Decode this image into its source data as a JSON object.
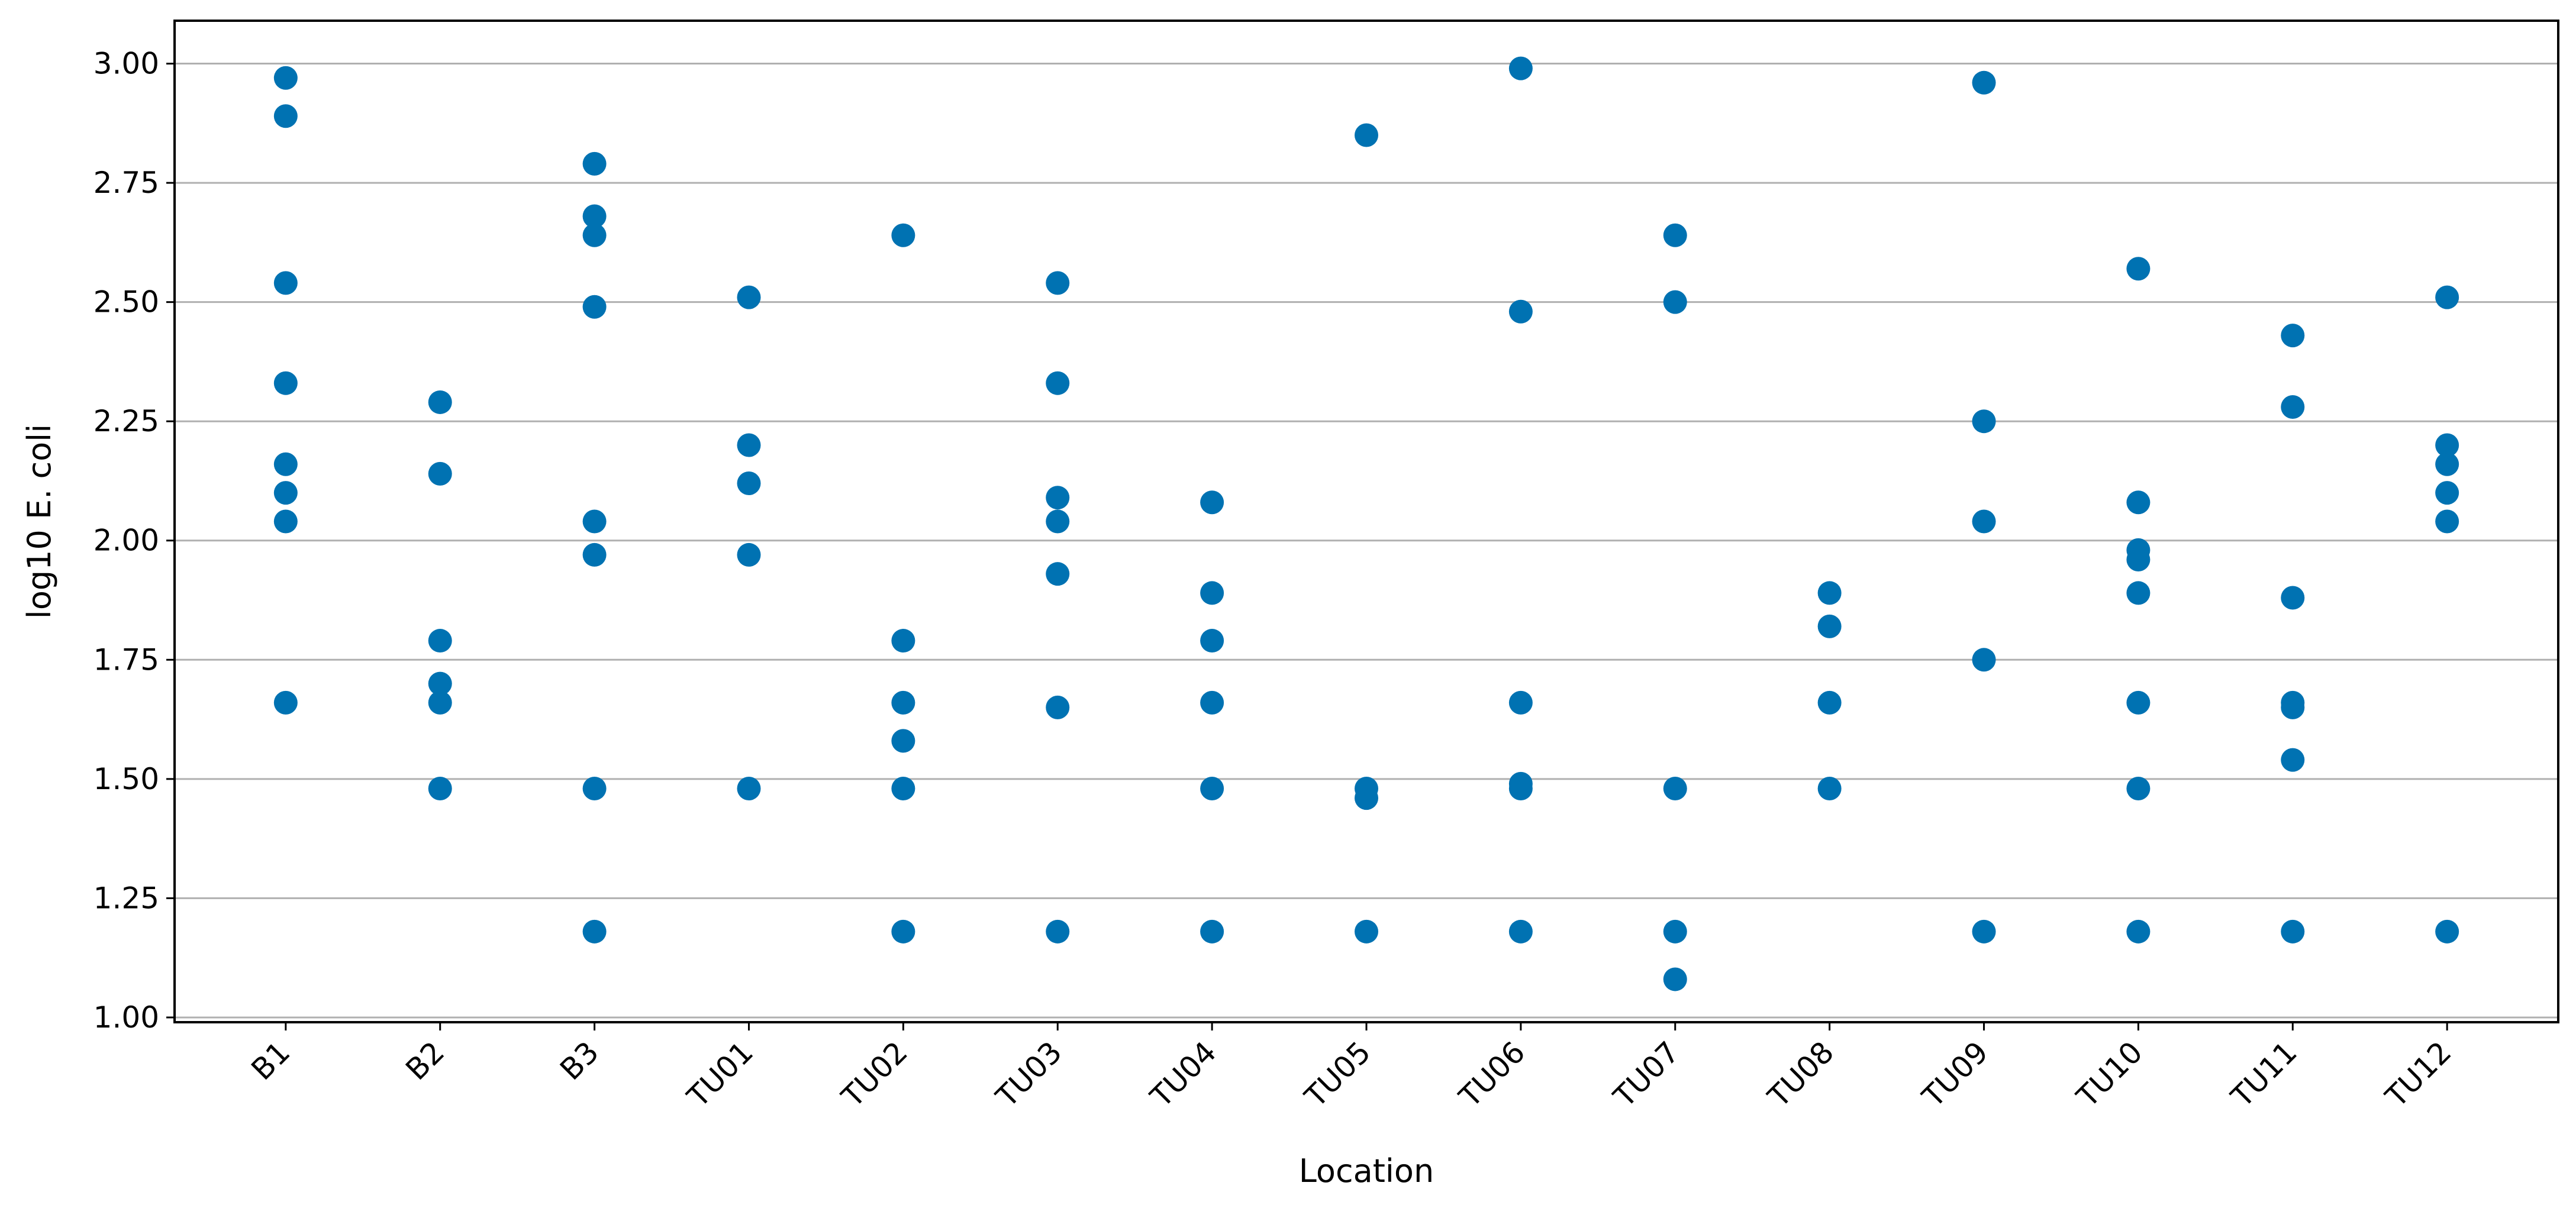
{
  "chart_data": {
    "type": "scatter",
    "title": "",
    "xlabel": "Location",
    "ylabel": "log10 E. coli",
    "categories": [
      "B1",
      "B2",
      "B3",
      "TU01",
      "TU02",
      "TU03",
      "TU04",
      "TU05",
      "TU06",
      "TU07",
      "TU08",
      "TU09",
      "TU10",
      "TU11",
      "TU12"
    ],
    "ylim": [
      0.99,
      3.09
    ],
    "yticks": [
      1.0,
      1.25,
      1.5,
      1.75,
      2.0,
      2.25,
      2.5,
      2.75,
      3.0
    ],
    "ytick_labels": [
      "1.00",
      "1.25",
      "1.50",
      "1.75",
      "2.00",
      "2.25",
      "2.50",
      "2.75",
      "3.00"
    ],
    "grid": "horizontal",
    "legend": "none",
    "marker_color": "#0072B2",
    "series": [
      {
        "points": [
          {
            "x": "B1",
            "y": 2.97
          },
          {
            "x": "B1",
            "y": 2.89
          },
          {
            "x": "B1",
            "y": 2.54
          },
          {
            "x": "B1",
            "y": 2.33
          },
          {
            "x": "B1",
            "y": 2.16
          },
          {
            "x": "B1",
            "y": 2.1
          },
          {
            "x": "B1",
            "y": 2.04
          },
          {
            "x": "B1",
            "y": 1.66
          },
          {
            "x": "B2",
            "y": 2.29
          },
          {
            "x": "B2",
            "y": 2.14
          },
          {
            "x": "B2",
            "y": 1.79
          },
          {
            "x": "B2",
            "y": 1.7
          },
          {
            "x": "B2",
            "y": 1.66
          },
          {
            "x": "B2",
            "y": 1.48
          },
          {
            "x": "B3",
            "y": 2.79
          },
          {
            "x": "B3",
            "y": 2.68
          },
          {
            "x": "B3",
            "y": 2.64
          },
          {
            "x": "B3",
            "y": 2.49
          },
          {
            "x": "B3",
            "y": 2.04
          },
          {
            "x": "B3",
            "y": 1.97
          },
          {
            "x": "B3",
            "y": 1.48
          },
          {
            "x": "B3",
            "y": 1.18
          },
          {
            "x": "TU01",
            "y": 2.51
          },
          {
            "x": "TU01",
            "y": 2.2
          },
          {
            "x": "TU01",
            "y": 2.12
          },
          {
            "x": "TU01",
            "y": 1.97
          },
          {
            "x": "TU01",
            "y": 1.48
          },
          {
            "x": "TU02",
            "y": 2.64
          },
          {
            "x": "TU02",
            "y": 1.79
          },
          {
            "x": "TU02",
            "y": 1.66
          },
          {
            "x": "TU02",
            "y": 1.58
          },
          {
            "x": "TU02",
            "y": 1.48
          },
          {
            "x": "TU02",
            "y": 1.18
          },
          {
            "x": "TU03",
            "y": 2.54
          },
          {
            "x": "TU03",
            "y": 2.33
          },
          {
            "x": "TU03",
            "y": 2.09
          },
          {
            "x": "TU03",
            "y": 2.04
          },
          {
            "x": "TU03",
            "y": 1.93
          },
          {
            "x": "TU03",
            "y": 1.65
          },
          {
            "x": "TU03",
            "y": 1.18
          },
          {
            "x": "TU04",
            "y": 2.08
          },
          {
            "x": "TU04",
            "y": 1.89
          },
          {
            "x": "TU04",
            "y": 1.79
          },
          {
            "x": "TU04",
            "y": 1.66
          },
          {
            "x": "TU04",
            "y": 1.48
          },
          {
            "x": "TU04",
            "y": 1.18
          },
          {
            "x": "TU05",
            "y": 2.85
          },
          {
            "x": "TU05",
            "y": 1.48
          },
          {
            "x": "TU05",
            "y": 1.46
          },
          {
            "x": "TU05",
            "y": 1.18
          },
          {
            "x": "TU06",
            "y": 2.99
          },
          {
            "x": "TU06",
            "y": 2.48
          },
          {
            "x": "TU06",
            "y": 1.66
          },
          {
            "x": "TU06",
            "y": 1.49
          },
          {
            "x": "TU06",
            "y": 1.48
          },
          {
            "x": "TU06",
            "y": 1.18
          },
          {
            "x": "TU07",
            "y": 2.64
          },
          {
            "x": "TU07",
            "y": 2.5
          },
          {
            "x": "TU07",
            "y": 1.48
          },
          {
            "x": "TU07",
            "y": 1.18
          },
          {
            "x": "TU07",
            "y": 1.08
          },
          {
            "x": "TU08",
            "y": 1.89
          },
          {
            "x": "TU08",
            "y": 1.82
          },
          {
            "x": "TU08",
            "y": 1.66
          },
          {
            "x": "TU08",
            "y": 1.48
          },
          {
            "x": "TU09",
            "y": 2.96
          },
          {
            "x": "TU09",
            "y": 2.25
          },
          {
            "x": "TU09",
            "y": 2.04
          },
          {
            "x": "TU09",
            "y": 1.75
          },
          {
            "x": "TU09",
            "y": 1.18
          },
          {
            "x": "TU10",
            "y": 2.57
          },
          {
            "x": "TU10",
            "y": 2.08
          },
          {
            "x": "TU10",
            "y": 1.98
          },
          {
            "x": "TU10",
            "y": 1.96
          },
          {
            "x": "TU10",
            "y": 1.89
          },
          {
            "x": "TU10",
            "y": 1.66
          },
          {
            "x": "TU10",
            "y": 1.48
          },
          {
            "x": "TU10",
            "y": 1.18
          },
          {
            "x": "TU11",
            "y": 2.43
          },
          {
            "x": "TU11",
            "y": 2.28
          },
          {
            "x": "TU11",
            "y": 1.88
          },
          {
            "x": "TU11",
            "y": 1.66
          },
          {
            "x": "TU11",
            "y": 1.65
          },
          {
            "x": "TU11",
            "y": 1.54
          },
          {
            "x": "TU11",
            "y": 1.18
          },
          {
            "x": "TU12",
            "y": 2.51
          },
          {
            "x": "TU12",
            "y": 2.2
          },
          {
            "x": "TU12",
            "y": 2.16
          },
          {
            "x": "TU12",
            "y": 2.1
          },
          {
            "x": "TU12",
            "y": 2.04
          },
          {
            "x": "TU12",
            "y": 1.18
          }
        ]
      }
    ]
  }
}
